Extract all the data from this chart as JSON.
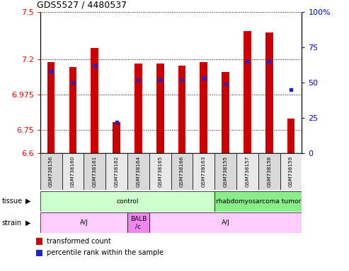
{
  "title": "GDS5527 / 4480537",
  "samples": [
    "GSM738156",
    "GSM738160",
    "GSM738161",
    "GSM738162",
    "GSM738164",
    "GSM738165",
    "GSM738166",
    "GSM738163",
    "GSM738155",
    "GSM738157",
    "GSM738158",
    "GSM738159"
  ],
  "transformed_count": [
    7.18,
    7.15,
    7.27,
    6.8,
    7.17,
    7.17,
    7.16,
    7.18,
    7.12,
    7.38,
    7.37,
    6.82
  ],
  "percentile_rank": [
    58,
    50,
    62,
    22,
    52,
    52,
    52,
    53,
    49,
    65,
    65,
    45
  ],
  "ymin": 6.6,
  "ymax": 7.5,
  "yticks": [
    6.6,
    6.75,
    6.975,
    7.2,
    7.5
  ],
  "ytick_labels": [
    "6.6",
    "6.75",
    "6.975",
    "7.2",
    "7.5"
  ],
  "right_yticks": [
    0,
    25,
    50,
    75,
    100
  ],
  "right_ytick_labels": [
    "0",
    "25",
    "50",
    "75",
    "100%"
  ],
  "bar_color": "#cc0000",
  "dot_color": "#2222cc",
  "tissue_groups": [
    {
      "label": "control",
      "start": 0,
      "end": 8,
      "color": "#ccffcc"
    },
    {
      "label": "rhabdomyosarcoma tumor",
      "start": 8,
      "end": 12,
      "color": "#88ee88"
    }
  ],
  "strain_groups": [
    {
      "label": "A/J",
      "start": 0,
      "end": 4,
      "color": "#ffccff"
    },
    {
      "label": "BALB\n/c",
      "start": 4,
      "end": 5,
      "color": "#ee88ee"
    },
    {
      "label": "A/J",
      "start": 5,
      "end": 12,
      "color": "#ffccff"
    }
  ],
  "legend_bar_color": "#cc0000",
  "legend_dot_color": "#2222cc",
  "bar_width": 0.35
}
